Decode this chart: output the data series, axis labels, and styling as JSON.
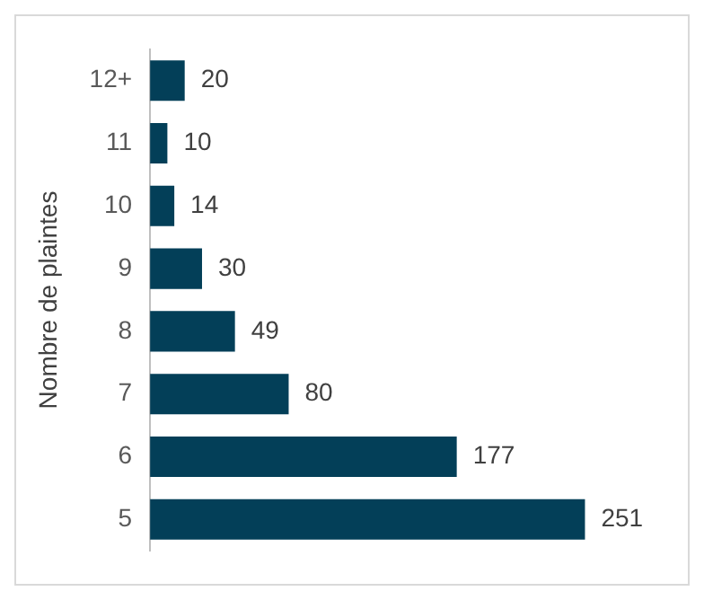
{
  "chart_data": {
    "type": "bar",
    "orientation": "horizontal",
    "ylabel": "Nombre de plaintes",
    "categories": [
      "12+",
      "11",
      "10",
      "9",
      "8",
      "7",
      "6",
      "5"
    ],
    "values": [
      20,
      10,
      14,
      30,
      49,
      80,
      177,
      251
    ],
    "color": "#033f58",
    "data_labels": true,
    "legend": false
  }
}
